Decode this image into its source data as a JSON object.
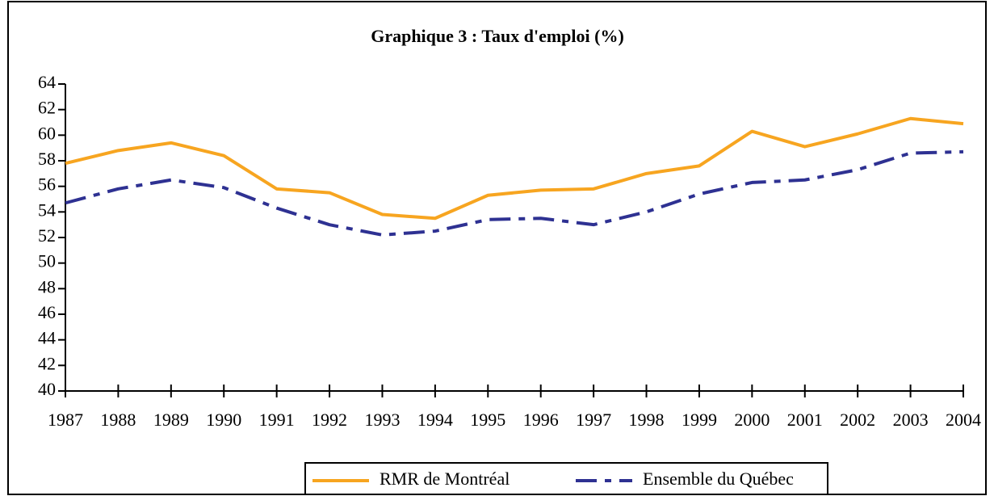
{
  "chart_data": {
    "type": "line",
    "title": "Graphique 3 : Taux d'emploi (%)",
    "categories": [
      "1987",
      "1988",
      "1989",
      "1990",
      "1991",
      "1992",
      "1993",
      "1994",
      "1995",
      "1996",
      "1997",
      "1998",
      "1999",
      "2000",
      "2001",
      "2002",
      "2003",
      "2004"
    ],
    "series": [
      {
        "name": "RMR de Montréal",
        "color": "#f7a520",
        "values": [
          57.8,
          58.8,
          59.4,
          58.4,
          55.8,
          55.5,
          53.8,
          53.5,
          55.3,
          55.7,
          55.8,
          57.0,
          57.6,
          60.3,
          59.1,
          60.1,
          61.3,
          60.9
        ]
      },
      {
        "name": "Ensemble du Québec",
        "color": "#2e3192",
        "dash": true,
        "values": [
          54.7,
          55.8,
          56.5,
          55.9,
          54.3,
          53.0,
          52.2,
          52.5,
          53.4,
          53.5,
          53.0,
          54.0,
          55.4,
          56.3,
          56.5,
          57.3,
          58.6,
          58.7
        ]
      }
    ],
    "ylim": [
      40,
      64
    ],
    "yticks": [
      40,
      42,
      44,
      46,
      48,
      50,
      52,
      54,
      56,
      58,
      60,
      62,
      64
    ],
    "grid": false
  }
}
